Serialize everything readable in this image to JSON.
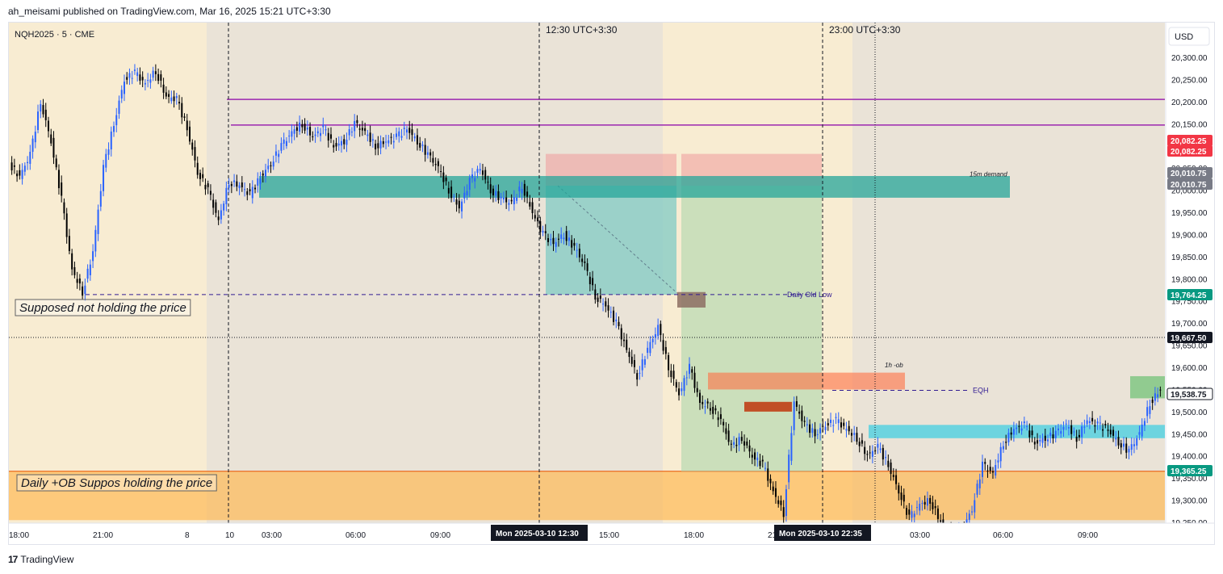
{
  "header": {
    "published": "ah_meisami published on TradingView.com, Mar 16, 2025 15:21 UTC+3:30"
  },
  "footer": {
    "brand": "TradingView",
    "brand_mark": "17"
  },
  "symbol": "NQH2025 · 5 · CME",
  "currency": "USD",
  "session_labels": [
    "12:30 UTC+3:30",
    "23:00 UTC+3:30"
  ],
  "colors": {
    "session_bg": "#f8ecd2",
    "off_session_bg": "#eae3d7",
    "up_candle": "#2962ff",
    "down_candle": "#000000",
    "resistance_line": "#9c27b0",
    "demand_zone": "#26a69a",
    "ob_zone": "#ffb74d",
    "short_stop": "#ef9a9a",
    "short_target": "#80cbc4"
  },
  "annotations": {
    "supposed_not_holding": "Supposed not holding the price",
    "daily_ob": "Daily +OB Suppos holding the price",
    "demand_15m": "15m demand",
    "daily_old_low": "Daily Old Low",
    "h1_ob": "1h -ob",
    "eqh": "EQH"
  },
  "price_badges": [
    {
      "label": "20,082.25",
      "value": 20082.25,
      "color": "#f23645"
    },
    {
      "label": "20,082.25",
      "value": 20082.25,
      "color": "#f23645"
    },
    {
      "label": "20,010.75",
      "value": 20010.75,
      "color": "#787b86"
    },
    {
      "label": "20,010.75",
      "value": 20010.75,
      "color": "#787b86"
    },
    {
      "label": "19,764.25",
      "value": 19764.25,
      "color": "#089981"
    },
    {
      "label": "19,667.50",
      "value": 19667.5,
      "color": "#131722"
    },
    {
      "label": "19,538.75",
      "value": 19538.75,
      "color": "#ffffff"
    },
    {
      "label": "19,365.25",
      "value": 19365.25,
      "color": "#089981"
    }
  ],
  "crosshair_labels": [
    "Mon 2025-03-10   12:30",
    "Mon 2025-03-10   22:35"
  ],
  "chart_data": {
    "type": "candlestick",
    "y_axis": {
      "min": 19250,
      "max": 20300,
      "step": 50,
      "ticks": [
        "20,300.00",
        "20,250.00",
        "20,200.00",
        "20,150.00",
        "20,100.00",
        "20,050.00",
        "20,000.00",
        "19,950.00",
        "19,900.00",
        "19,850.00",
        "19,800.00",
        "19,750.00",
        "19,700.00",
        "19,650.00",
        "19,600.00",
        "19,550.00",
        "19,500.00",
        "19,450.00",
        "19,400.00",
        "19,350.00",
        "19,300.00",
        "19,250.00"
      ]
    },
    "x_axis": {
      "tick_labels": [
        "18:00",
        "21:00",
        "8",
        "10",
        "03:00",
        "06:00",
        "09:00",
        "12:00",
        "15:00",
        "18:00",
        "21:00",
        "03:00",
        "06:00",
        "09:00"
      ]
    },
    "key_levels": [
      {
        "name": "upper-resistance",
        "value": 20205
      },
      {
        "name": "lower-resistance",
        "value": 20147
      },
      {
        "name": "daily-old-low",
        "value": 19764.25
      },
      {
        "name": "eqh",
        "value": 19548
      },
      {
        "name": "crosshair-price",
        "value": 19667.5
      }
    ],
    "zones": [
      {
        "name": "15m-demand",
        "from": 19983,
        "to": 20032
      },
      {
        "name": "daily-ob",
        "from": 19255,
        "to": 19365.25
      },
      {
        "name": "1h-ob",
        "from": 19550,
        "to": 19588
      },
      {
        "name": "h-support",
        "from": 19440,
        "to": 19470
      }
    ],
    "price_path": [
      20060,
      20030,
      20080,
      20200,
      20110,
      19980,
      19820,
      19770,
      19860,
      20050,
      20150,
      20250,
      20265,
      20240,
      20270,
      20210,
      20205,
      20140,
      20040,
      20000,
      19930,
      20020,
      20010,
      19990,
      20030,
      20060,
      20100,
      20130,
      20150,
      20120,
      20140,
      20100,
      20110,
      20150,
      20130,
      20100,
      20110,
      20120,
      20140,
      20110,
      20080,
      20050,
      20000,
      19960,
      20020,
      20050,
      20000,
      19980,
      19970,
      20010,
      19950,
      19900,
      19880,
      19900,
      19870,
      19830,
      19760,
      19740,
      19700,
      19640,
      19580,
      19640,
      19690,
      19600,
      19540,
      19600,
      19520,
      19510,
      19480,
      19420,
      19440,
      19400,
      19380,
      19320,
      19270,
      19520,
      19470,
      19450,
      19470,
      19480,
      19460,
      19440,
      19400,
      19420,
      19380,
      19320,
      19260,
      19290,
      19300,
      19250,
      19220,
      19230,
      19280,
      19380,
      19360,
      19430,
      19460,
      19470,
      19430,
      19440,
      19450,
      19470,
      19440,
      19480,
      19470,
      19460,
      19430,
      19410,
      19450,
      19520,
      19550
    ]
  }
}
